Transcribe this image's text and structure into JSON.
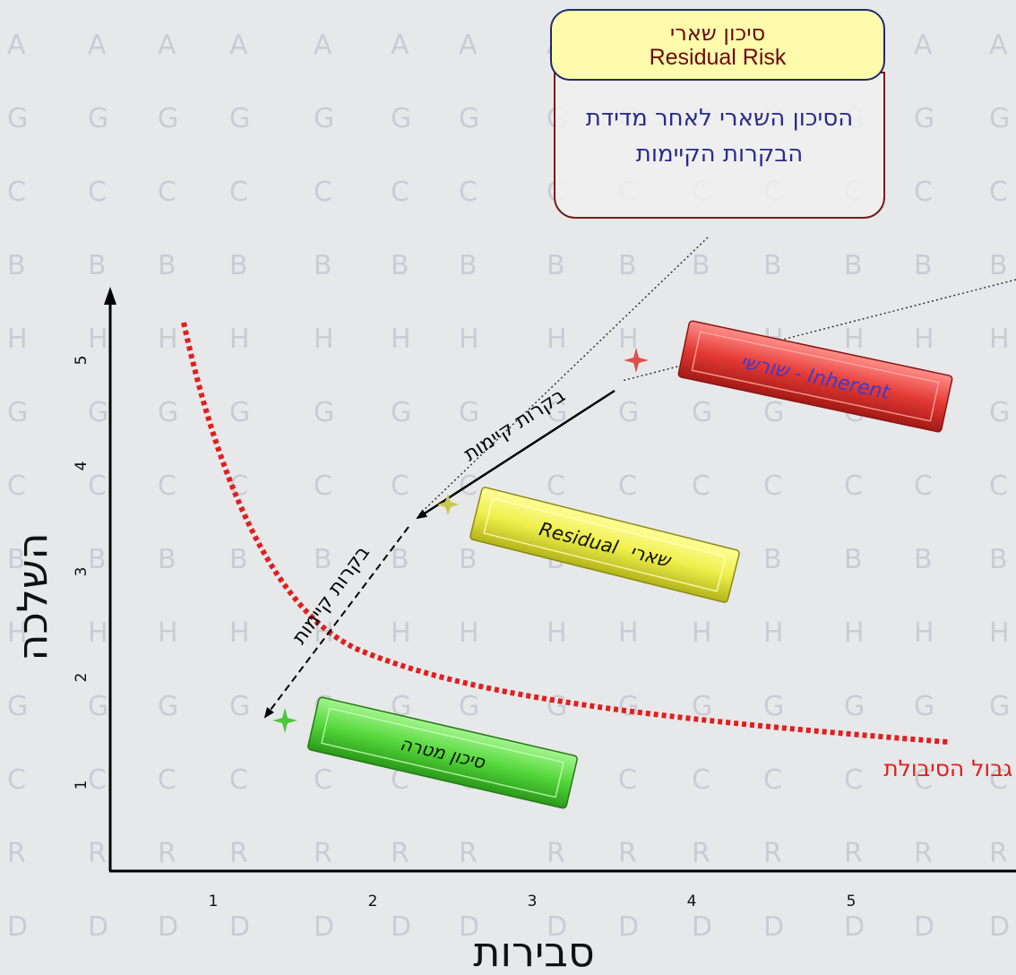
{
  "callout": {
    "title_he": "סיכון שארי",
    "title_en": "Residual  Risk",
    "body": "הסיכון השארי לאחר מדידת הבקרות הקיימות"
  },
  "axes": {
    "x_label": "סבירות",
    "y_label": "השלכה",
    "x_ticks": [
      "1",
      "2",
      "3",
      "4",
      "5"
    ],
    "y_ticks": [
      "1",
      "2",
      "3",
      "4",
      "5"
    ]
  },
  "bars": {
    "inherent": {
      "label_he": "שורשי - ",
      "label_en": "Inherent",
      "color": "#e53a35"
    },
    "residual": {
      "label_he": "שארי",
      "label_en": "Residual",
      "color": "#eeee4a"
    },
    "target": {
      "label": "סיכון מטרה",
      "color": "#55d83b"
    }
  },
  "arrows": {
    "upper_label": "בקרות קיימות",
    "lower_label": "בקרות קיימות"
  },
  "tolerance": {
    "label": "גבול הסיבולת",
    "color": "#e01f1f"
  },
  "colors": {
    "axis": "#000000",
    "dotted_pointer": "#333333"
  }
}
